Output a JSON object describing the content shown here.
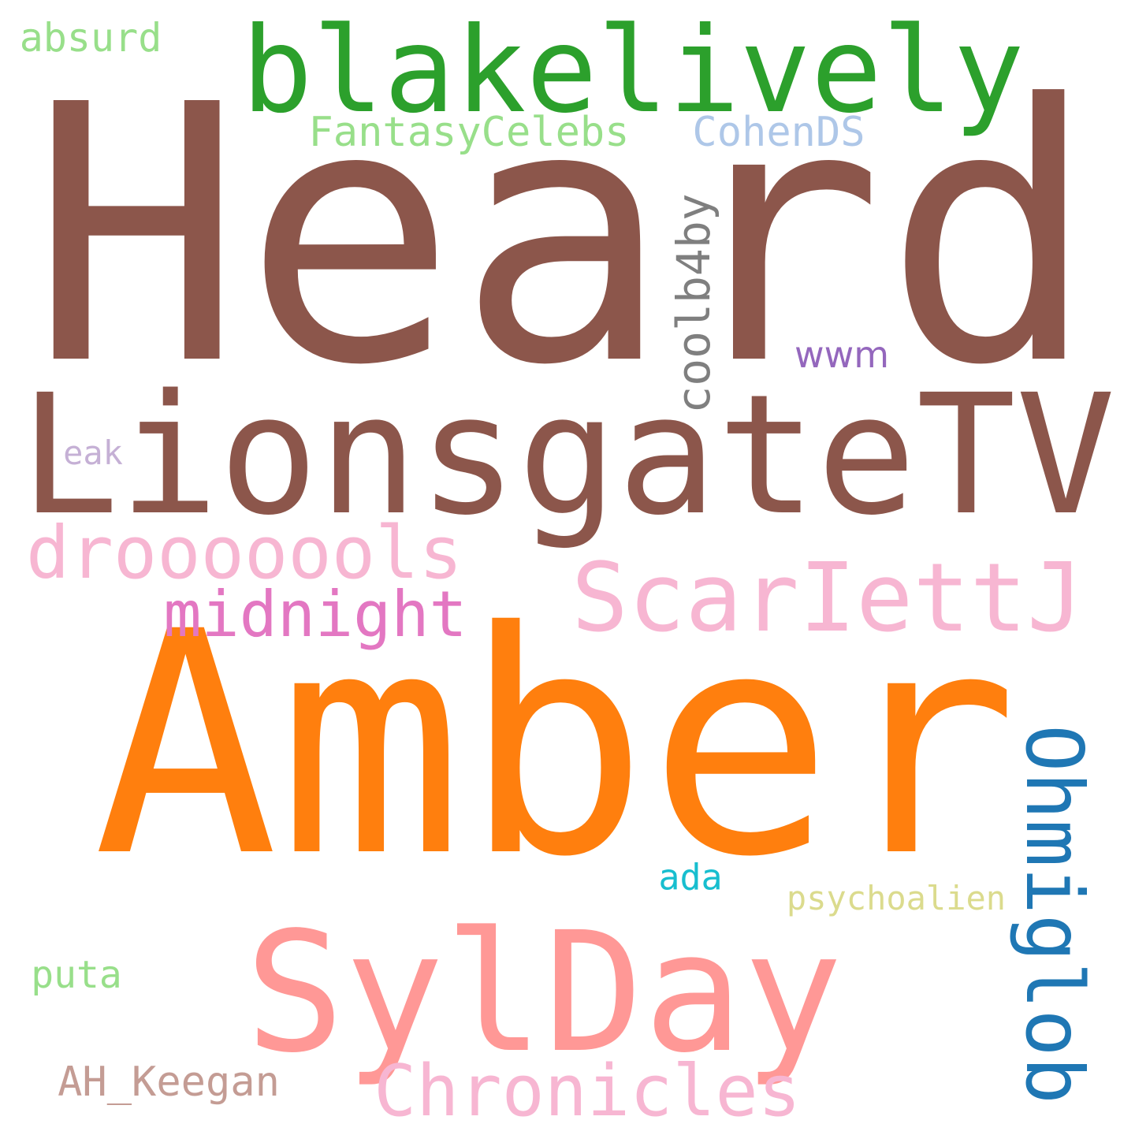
{
  "words": [
    {
      "id": "heard",
      "text": "Heard",
      "color": "#8c564b"
    },
    {
      "id": "amber",
      "text": "Amber",
      "color": "#ff7f0e"
    },
    {
      "id": "lionsgate",
      "text": "LionsgateTV",
      "color": "#8c564b"
    },
    {
      "id": "blakelively",
      "text": "blakelively",
      "color": "#2ca02c"
    },
    {
      "id": "sylday",
      "text": "SylDay",
      "color": "#ff9896"
    },
    {
      "id": "scarlett",
      "text": "ScarIettJ",
      "color": "#f7b6d2"
    },
    {
      "id": "drooo",
      "text": "drooooools",
      "color": "#f7b6d2"
    },
    {
      "id": "midnight",
      "text": "midnight",
      "color": "#e377c2"
    },
    {
      "id": "chronicles",
      "text": "Chronicles",
      "color": "#f7b6d2"
    },
    {
      "id": "ohmiglob",
      "text": "Ohmiglob",
      "color": "#1f77b4"
    },
    {
      "id": "cool",
      "text": "coolb4by",
      "color": "#7f7f7f"
    },
    {
      "id": "fantasy",
      "text": "FantasyCelebs",
      "color": "#98df8a"
    },
    {
      "id": "cohen",
      "text": "CohenDS",
      "color": "#aec7e8"
    },
    {
      "id": "absurd",
      "text": "absurd",
      "color": "#98df8a"
    },
    {
      "id": "psycho",
      "text": "psychoalien",
      "color": "#dbdb8d"
    },
    {
      "id": "aa",
      "text": "AH_Keegan",
      "color": "#c49c94"
    },
    {
      "id": "puta",
      "text": "puta",
      "color": "#98df8a"
    },
    {
      "id": "ada",
      "text": "ada",
      "color": "#17becf"
    },
    {
      "id": "eak",
      "text": "eak",
      "color": "#c5b0d5"
    },
    {
      "id": "wwm",
      "text": "wwm",
      "color": "#9467bd"
    }
  ]
}
